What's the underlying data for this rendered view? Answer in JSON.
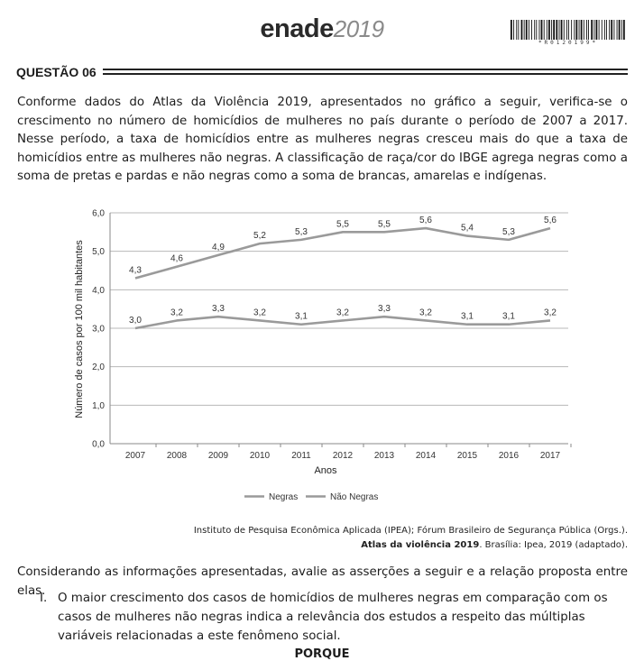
{
  "header": {
    "logo_text": "enade",
    "logo_year": "2019",
    "barcode_text": "*R0120199*"
  },
  "question": {
    "label": "QUESTÃO 06",
    "intro": "Conforme dados do Atlas da Violência 2019, apresentados no gráfico a seguir, verifica-se o crescimento no número de homicídios de mulheres no país durante o período de 2007 a 2017. Nesse período, a taxa de homicídios entre as mulheres negras cresceu mais do que a taxa de homicídios entre as mulheres não negras. A classificação de raça/cor do IBGE agrega negras como a soma de pretas e pardas e não negras como a soma de brancas, amarelas e indígenas.",
    "source_line1": "Instituto de Pesquisa Econômica Aplicada (IPEA); Fórum Brasileiro de Segurança Pública (Orgs.).",
    "source_title": "Atlas da violência 2019",
    "source_rest": ". Brasília: Ipea, 2019 (adaptado).",
    "considering": "Considerando as informações apresentadas, avalie as asserções a seguir e a relação proposta entre elas.",
    "assertion_num": "I.",
    "assertion_text": "O maior crescimento dos casos de homicídios de mulheres negras em comparação com os casos de mulheres não negras indica a relevância dos estudos a respeito das múltiplas variáveis relacionadas a este fenômeno social.",
    "porque": "PORQUE"
  },
  "chart_data": {
    "type": "line",
    "title": "",
    "xlabel": "Anos",
    "ylabel": "Número de casos por 100 mil habitantes",
    "x": [
      "2007",
      "2008",
      "2009",
      "2010",
      "2011",
      "2012",
      "2013",
      "2014",
      "2015",
      "2016",
      "2017"
    ],
    "ylim": [
      0,
      6
    ],
    "yticks": [
      "0,0",
      "1,0",
      "2,0",
      "3,0",
      "4,0",
      "5,0",
      "6,0"
    ],
    "grid": true,
    "legend": "bottom",
    "series": [
      {
        "name": "Negras",
        "color": "#9a9a9a",
        "values": [
          4.3,
          4.6,
          4.9,
          5.2,
          5.3,
          5.5,
          5.5,
          5.6,
          5.4,
          5.3,
          5.6
        ],
        "labels": [
          "4,3",
          "4,6",
          "4,9",
          "5,2",
          "5,3",
          "5,5",
          "5,5",
          "5,6",
          "5,4",
          "5,3",
          "5,6"
        ]
      },
      {
        "name": "Não Negras",
        "color": "#9a9a9a",
        "values": [
          3.0,
          3.2,
          3.3,
          3.2,
          3.1,
          3.2,
          3.3,
          3.2,
          3.1,
          3.1,
          3.2
        ],
        "labels": [
          "3,0",
          "3,2",
          "3,3",
          "3,2",
          "3,1",
          "3,2",
          "3,3",
          "3,2",
          "3,1",
          "3,1",
          "3,2"
        ]
      }
    ]
  }
}
